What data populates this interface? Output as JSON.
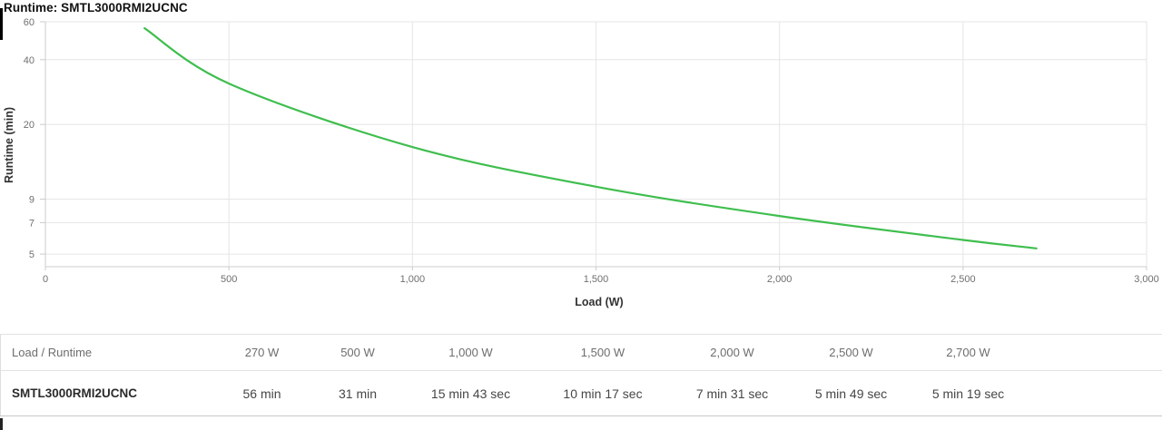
{
  "header": {
    "title": "Runtime: SMTL3000RMI2UCNC"
  },
  "chart_data": {
    "type": "line",
    "title": "Runtime: SMTL3000RMI2UCNC",
    "xlabel": "Load (W)",
    "ylabel": "Runtime (min)",
    "grid": true,
    "legend": false,
    "x_axis": {
      "min": 0,
      "max": 3000,
      "ticks": [
        0,
        500,
        1000,
        1500,
        2000,
        2500,
        3000
      ],
      "tick_labels": [
        "0",
        "500",
        "1,000",
        "1,500",
        "2,000",
        "2,500",
        "3,000"
      ]
    },
    "y_axis": {
      "scale": "log",
      "ticks": [
        60,
        40,
        20,
        9,
        7,
        5
      ],
      "tick_labels": [
        "60",
        "40",
        "20",
        "9",
        "7",
        "5"
      ],
      "ylim": [
        4.4,
        60
      ]
    },
    "series": [
      {
        "name": "SMTL3000RMI2UCNC",
        "color": "#3fbe4e",
        "points": [
          {
            "load_w": 270,
            "runtime_min": 56.0
          },
          {
            "load_w": 500,
            "runtime_min": 31.0
          },
          {
            "load_w": 1000,
            "runtime_min": 15.717
          },
          {
            "load_w": 1500,
            "runtime_min": 10.283
          },
          {
            "load_w": 2000,
            "runtime_min": 7.517
          },
          {
            "load_w": 2500,
            "runtime_min": 5.817
          },
          {
            "load_w": 2700,
            "runtime_min": 5.317
          }
        ]
      }
    ]
  },
  "table": {
    "header": {
      "label": "Load / Runtime",
      "columns": [
        "270 W",
        "500 W",
        "1,000 W",
        "1,500 W",
        "2,000 W",
        "2,500 W",
        "2,700 W"
      ]
    },
    "row": {
      "label": "SMTL3000RMI2UCNC",
      "values": [
        "56 min",
        "31 min",
        "15 min 43 sec",
        "10 min 17 sec",
        "7 min 31 sec",
        "5 min 49 sec",
        "5 min 19 sec"
      ]
    }
  }
}
